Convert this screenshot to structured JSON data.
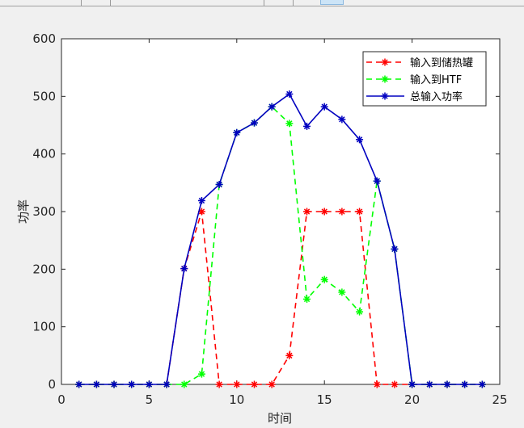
{
  "chart_data": {
    "type": "line",
    "xlabel": "时间",
    "ylabel": "功率",
    "xlim": [
      0,
      25
    ],
    "ylim": [
      0,
      600
    ],
    "xticks": [
      0,
      5,
      10,
      15,
      20,
      25
    ],
    "yticks": [
      0,
      100,
      200,
      300,
      400,
      500,
      600
    ],
    "grid": false,
    "legend_position": "top-right",
    "x": [
      1,
      2,
      3,
      4,
      5,
      6,
      7,
      8,
      9,
      10,
      11,
      12,
      13,
      14,
      15,
      16,
      17,
      18,
      19,
      20,
      21,
      22,
      23,
      24
    ],
    "series": [
      {
        "name": "输入到储热罐",
        "color": "#ff0000",
        "style": "dashed",
        "marker": "asterisk",
        "values": [
          0,
          0,
          0,
          0,
          0,
          0,
          201,
          300,
          0,
          0,
          0,
          0,
          50,
          300,
          300,
          300,
          300,
          0,
          0,
          0,
          0,
          0,
          0,
          0
        ]
      },
      {
        "name": "输入到HTF",
        "color": "#00ff00",
        "style": "dashed",
        "marker": "asterisk",
        "values": [
          0,
          0,
          0,
          0,
          0,
          0,
          0,
          18,
          347,
          437,
          454,
          482,
          453,
          148,
          182,
          160,
          126,
          353,
          235,
          0,
          0,
          0,
          0,
          0
        ]
      },
      {
        "name": "总输入功率",
        "color": "#0000c0",
        "style": "solid",
        "marker": "asterisk",
        "values": [
          0,
          0,
          0,
          0,
          0,
          0,
          201,
          319,
          347,
          437,
          454,
          482,
          504,
          448,
          482,
          460,
          425,
          353,
          235,
          0,
          0,
          0,
          0,
          0
        ]
      }
    ]
  }
}
